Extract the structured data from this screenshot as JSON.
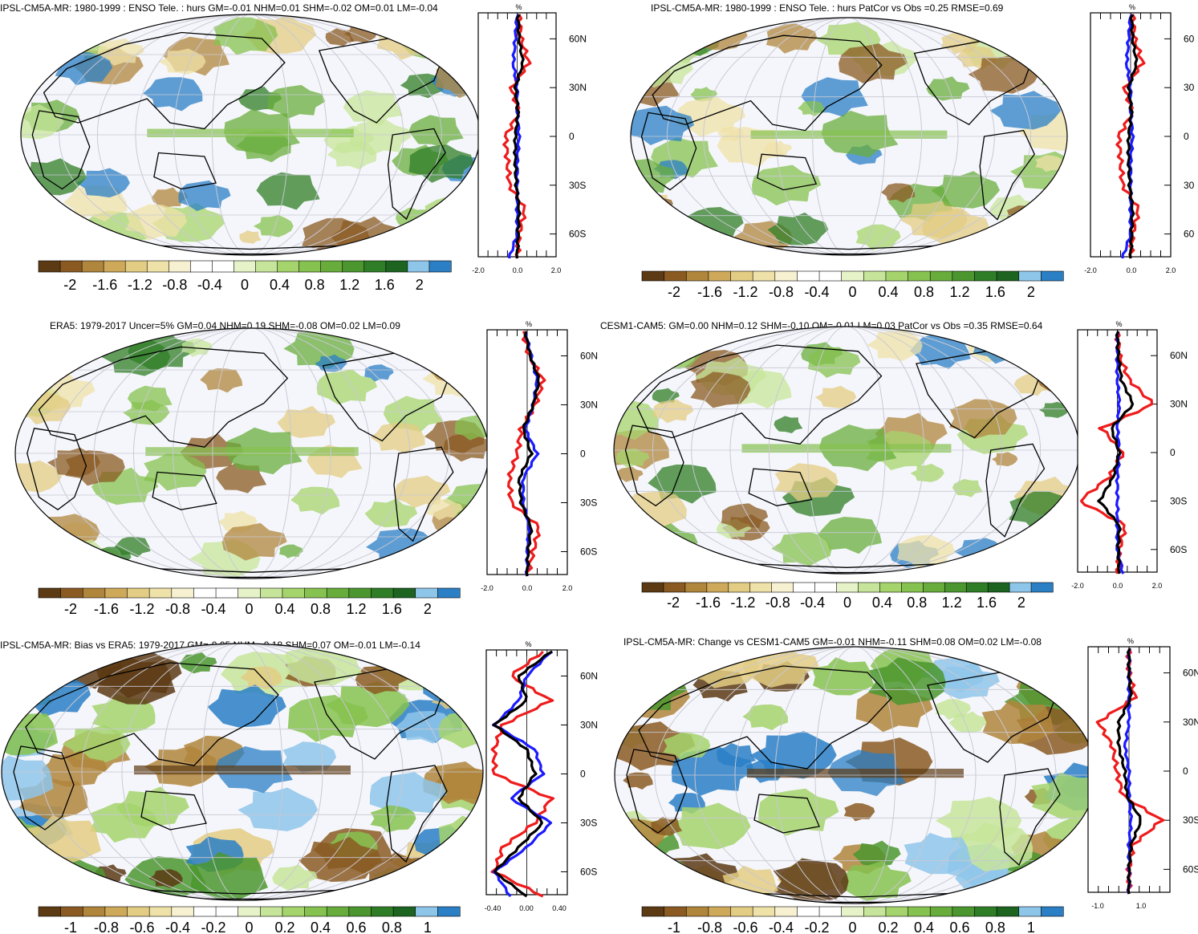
{
  "panels": [
    {
      "title": "IPSL-CM5A-MR: 1980-1999 : ENSO Tele. : hurs GM=-0.01 NHM=0.01 SHM=-0.02 OM=0.01 LM=-0.04",
      "profile_unit": "%",
      "profile_xticks": [
        "-2.0",
        "0.0",
        "2.0"
      ],
      "lat_ticks": [
        "60N",
        "30N",
        "0",
        "30S",
        "60S"
      ],
      "colorbar_labels": [
        "-2",
        "-1.6",
        "-1.2",
        "-0.8",
        "-0.4",
        "0",
        "0.4",
        "0.8",
        "1.2",
        "1.6",
        "2"
      ]
    },
    {
      "title": "IPSL-CM5A-MR: 1980-1999 : ENSO Tele. : hurs PatCor vs Obs =0.25 RMSE=0.69",
      "profile_unit": "%",
      "profile_xticks": [
        "-2.0",
        "0.0",
        "2.0"
      ],
      "lat_ticks": [
        "60",
        "30",
        "0",
        "30",
        "60"
      ],
      "colorbar_labels": [
        "-2",
        "-1.6",
        "-1.2",
        "-0.8",
        "-0.4",
        "0",
        "0.4",
        "0.8",
        "1.2",
        "1.6",
        "2"
      ]
    },
    {
      "title": "ERA5: 1979-2017 Uncer=5% GM=0.04 NHM=0.19 SHM=-0.08 OM=0.02 LM=0.09",
      "profile_unit": "%",
      "profile_xticks": [
        "-2.0",
        "0.0",
        "2.0"
      ],
      "lat_ticks": [
        "60N",
        "30N",
        "0",
        "30S",
        "60S"
      ],
      "colorbar_labels": [
        "-2",
        "-1.6",
        "-1.2",
        "-0.8",
        "-0.4",
        "0",
        "0.4",
        "0.8",
        "1.2",
        "1.6",
        "2"
      ]
    },
    {
      "title": "CESM1-CAM5: GM=0.00 NHM=0.12 SHM=-0.10 OM=-0.01 LM=0.03 PatCor vs Obs =0.35 RMSE=0.64",
      "profile_unit": "%",
      "profile_xticks": [
        "-2.0",
        "0.0",
        "2.0"
      ],
      "lat_ticks": [
        "60N",
        "30N",
        "0",
        "30S",
        "60S"
      ],
      "colorbar_labels": [
        "-2",
        "-1.6",
        "-1.2",
        "-0.8",
        "-0.4",
        "0",
        "0.4",
        "0.8",
        "1.2",
        "1.6",
        "2"
      ]
    },
    {
      "title": "IPSL-CM5A-MR: Bias vs ERA5: 1979-2017 GM=-0.05 NHM=-0.18 SHM=0.07 OM=-0.01 LM=-0.14",
      "profile_unit": "%",
      "profile_xticks": [
        "-0.40",
        "0.00",
        "0.40"
      ],
      "lat_ticks": [
        "60N",
        "30N",
        "0",
        "30S",
        "60S"
      ],
      "colorbar_labels": [
        "-1",
        "-0.8",
        "-0.6",
        "-0.4",
        "-0.2",
        "0",
        "0.2",
        "0.4",
        "0.6",
        "0.8",
        "1"
      ]
    },
    {
      "title": "IPSL-CM5A-MR: Change vs CESM1-CAM5 GM=-0.01 NHM=-0.11 SHM=0.08 OM=0.02 LM=-0.08",
      "profile_unit": "%",
      "profile_xticks": [
        "-1.0",
        "1.0"
      ],
      "lat_ticks": [
        "60N",
        "30N",
        "0",
        "30S",
        "60S"
      ],
      "colorbar_labels": [
        "-1",
        "-0.8",
        "-0.6",
        "-0.4",
        "-0.2",
        "0",
        "0.2",
        "0.4",
        "0.6",
        "0.8",
        "1"
      ]
    }
  ],
  "colors": {
    "colorbar": [
      "#5c3a14",
      "#8a5a22",
      "#b0853c",
      "#cfa95a",
      "#e3cc83",
      "#efe2a8",
      "#f7f1d2",
      "#ffffff",
      "#ffffff",
      "#e6f2c8",
      "#c7e59a",
      "#a5d46c",
      "#86c24f",
      "#68ad3c",
      "#4b962f",
      "#2f7d26",
      "#1c6420",
      "#8ec6ea",
      "#2a7fc5"
    ],
    "series_red": "#ee1c1c",
    "series_blue": "#1a1aff",
    "series_black": "#000000",
    "ocean_bg": "#f5f6fb",
    "grid": "#c8c8d2"
  },
  "chart_data": [
    {
      "type": "heatmap",
      "title": "IPSL-CM5A-MR: 1980-1999 : ENSO Tele. : hurs GM=-0.01 NHM=0.01 SHM=-0.02 OM=0.01 LM=-0.04",
      "colorbar_range": [
        -2,
        2
      ],
      "profile": {
        "unit": "%",
        "xlim": [
          -2,
          2
        ],
        "lat": [
          75,
          60,
          45,
          30,
          15,
          0,
          -15,
          -30,
          -45,
          -60,
          -75
        ],
        "series": [
          {
            "values": [
              0.1,
              0.2,
              0.6,
              -0.3,
              0.1,
              -0.6,
              -0.5,
              -0.4,
              0.4,
              0.1,
              0.0
            ]
          },
          {
            "values": [
              0.0,
              -0.1,
              -0.2,
              0.0,
              0.0,
              0.1,
              0.0,
              0.0,
              0.0,
              0.0,
              -0.4
            ]
          },
          {
            "values": [
              0.05,
              0.1,
              0.3,
              -0.1,
              0.05,
              -0.1,
              -0.1,
              -0.05,
              0.1,
              0.05,
              0.0
            ]
          }
        ]
      }
    },
    {
      "type": "heatmap",
      "title": "IPSL-CM5A-MR: 1980-1999 : ENSO Tele. : hurs PatCor vs Obs =0.25 RMSE=0.69",
      "colorbar_range": [
        -2,
        2
      ],
      "profile": {
        "unit": "%",
        "xlim": [
          -2,
          2
        ],
        "lat": [
          75,
          60,
          45,
          30,
          15,
          0,
          -15,
          -30,
          -45,
          -60,
          -75
        ],
        "series": [
          {
            "values": [
              0.1,
              0.2,
              0.6,
              -0.3,
              0.1,
              -0.6,
              -0.5,
              -0.4,
              0.4,
              0.1,
              0.0
            ]
          },
          {
            "values": [
              0.0,
              -0.1,
              -0.2,
              0.0,
              0.0,
              0.1,
              0.0,
              0.0,
              0.0,
              0.0,
              -0.4
            ]
          },
          {
            "values": [
              0.05,
              0.1,
              0.3,
              -0.1,
              0.05,
              -0.1,
              -0.1,
              -0.05,
              0.1,
              0.05,
              0.0
            ]
          }
        ]
      }
    },
    {
      "type": "heatmap",
      "title": "ERA5: 1979-2017 Uncer=5% GM=0.04 NHM=0.19 SHM=-0.08 OM=0.02 LM=0.09",
      "colorbar_range": [
        -2,
        2
      ],
      "profile": {
        "unit": "%",
        "xlim": [
          -2,
          2
        ],
        "lat": [
          75,
          60,
          45,
          30,
          15,
          0,
          -15,
          -30,
          -45,
          -60,
          -75
        ],
        "series": [
          {
            "values": [
              -0.2,
              0.1,
              0.8,
              0.4,
              -0.3,
              -0.5,
              -0.9,
              -0.8,
              0.6,
              0.3,
              0.0
            ]
          },
          {
            "values": [
              -0.1,
              0.2,
              0.5,
              0.3,
              -0.1,
              0.5,
              -0.2,
              -0.2,
              0.1,
              0.0,
              0.0
            ]
          },
          {
            "values": [
              -0.1,
              0.15,
              0.6,
              0.3,
              -0.2,
              0.2,
              -0.4,
              -0.3,
              0.2,
              0.05,
              0.0
            ]
          }
        ]
      }
    },
    {
      "type": "heatmap",
      "title": "CESM1-CAM5: GM=0.00 NHM=0.12 SHM=-0.10 OM=-0.01 LM=0.03 PatCor vs Obs =0.35 RMSE=0.64",
      "colorbar_range": [
        -2,
        2
      ],
      "profile": {
        "unit": "%",
        "xlim": [
          -2,
          2
        ],
        "lat": [
          75,
          60,
          45,
          30,
          15,
          0,
          -15,
          -30,
          -45,
          -60,
          -75
        ],
        "series": [
          {
            "values": [
              0.0,
              0.1,
              0.6,
              1.8,
              -0.8,
              0.3,
              -0.4,
              -1.9,
              0.4,
              0.1,
              0.0
            ]
          },
          {
            "values": [
              0.0,
              0.0,
              0.0,
              0.1,
              0.0,
              0.1,
              0.0,
              0.0,
              0.0,
              0.0,
              0.3
            ]
          },
          {
            "values": [
              0.0,
              0.05,
              0.2,
              0.8,
              -0.3,
              0.1,
              -0.2,
              -0.9,
              0.1,
              0.05,
              0.1
            ]
          }
        ]
      }
    },
    {
      "type": "heatmap",
      "title": "IPSL-CM5A-MR: Bias vs ERA5: 1979-2017 GM=-0.05 NHM=-0.18 SHM=0.07 OM=-0.01 LM=-0.14",
      "colorbar_range": [
        -1,
        1
      ],
      "profile": {
        "unit": "%",
        "xlim": [
          -0.5,
          0.5
        ],
        "lat": [
          75,
          60,
          45,
          30,
          15,
          0,
          -15,
          -30,
          -45,
          -60,
          -75
        ],
        "series": [
          {
            "values": [
              0.2,
              -0.2,
              0.3,
              -0.3,
              -0.4,
              -0.4,
              0.3,
              0.1,
              -0.3,
              -0.4,
              0.2
            ]
          },
          {
            "values": [
              0.3,
              0.0,
              -0.1,
              -0.4,
              0.1,
              0.2,
              -0.2,
              0.3,
              0.0,
              -0.4,
              -0.2
            ]
          },
          {
            "values": [
              0.3,
              -0.1,
              0.0,
              -0.4,
              0.0,
              0.1,
              -0.1,
              0.2,
              -0.1,
              -0.4,
              0.0
            ]
          }
        ]
      }
    },
    {
      "type": "heatmap",
      "title": "IPSL-CM5A-MR: Change vs CESM1-CAM5 GM=-0.01 NHM=-0.11 SHM=0.08 OM=0.02 LM=-0.08",
      "colorbar_range": [
        -1,
        1
      ],
      "profile": {
        "unit": "%",
        "xlim": [
          -2,
          2
        ],
        "lat": [
          75,
          60,
          45,
          30,
          15,
          0,
          -15,
          -30,
          -45,
          -60,
          -75
        ],
        "series": [
          {
            "values": [
              0.0,
              0.0,
              0.3,
              -1.5,
              -0.8,
              -0.6,
              -0.3,
              1.6,
              0.2,
              0.0,
              0.0
            ]
          },
          {
            "values": [
              0.0,
              0.0,
              0.0,
              0.0,
              -0.2,
              0.0,
              0.0,
              0.1,
              0.0,
              0.0,
              0.0
            ]
          },
          {
            "values": [
              0.0,
              0.0,
              0.1,
              -0.5,
              -0.5,
              -0.2,
              -0.1,
              0.6,
              0.1,
              0.0,
              0.0
            ]
          }
        ]
      }
    }
  ]
}
